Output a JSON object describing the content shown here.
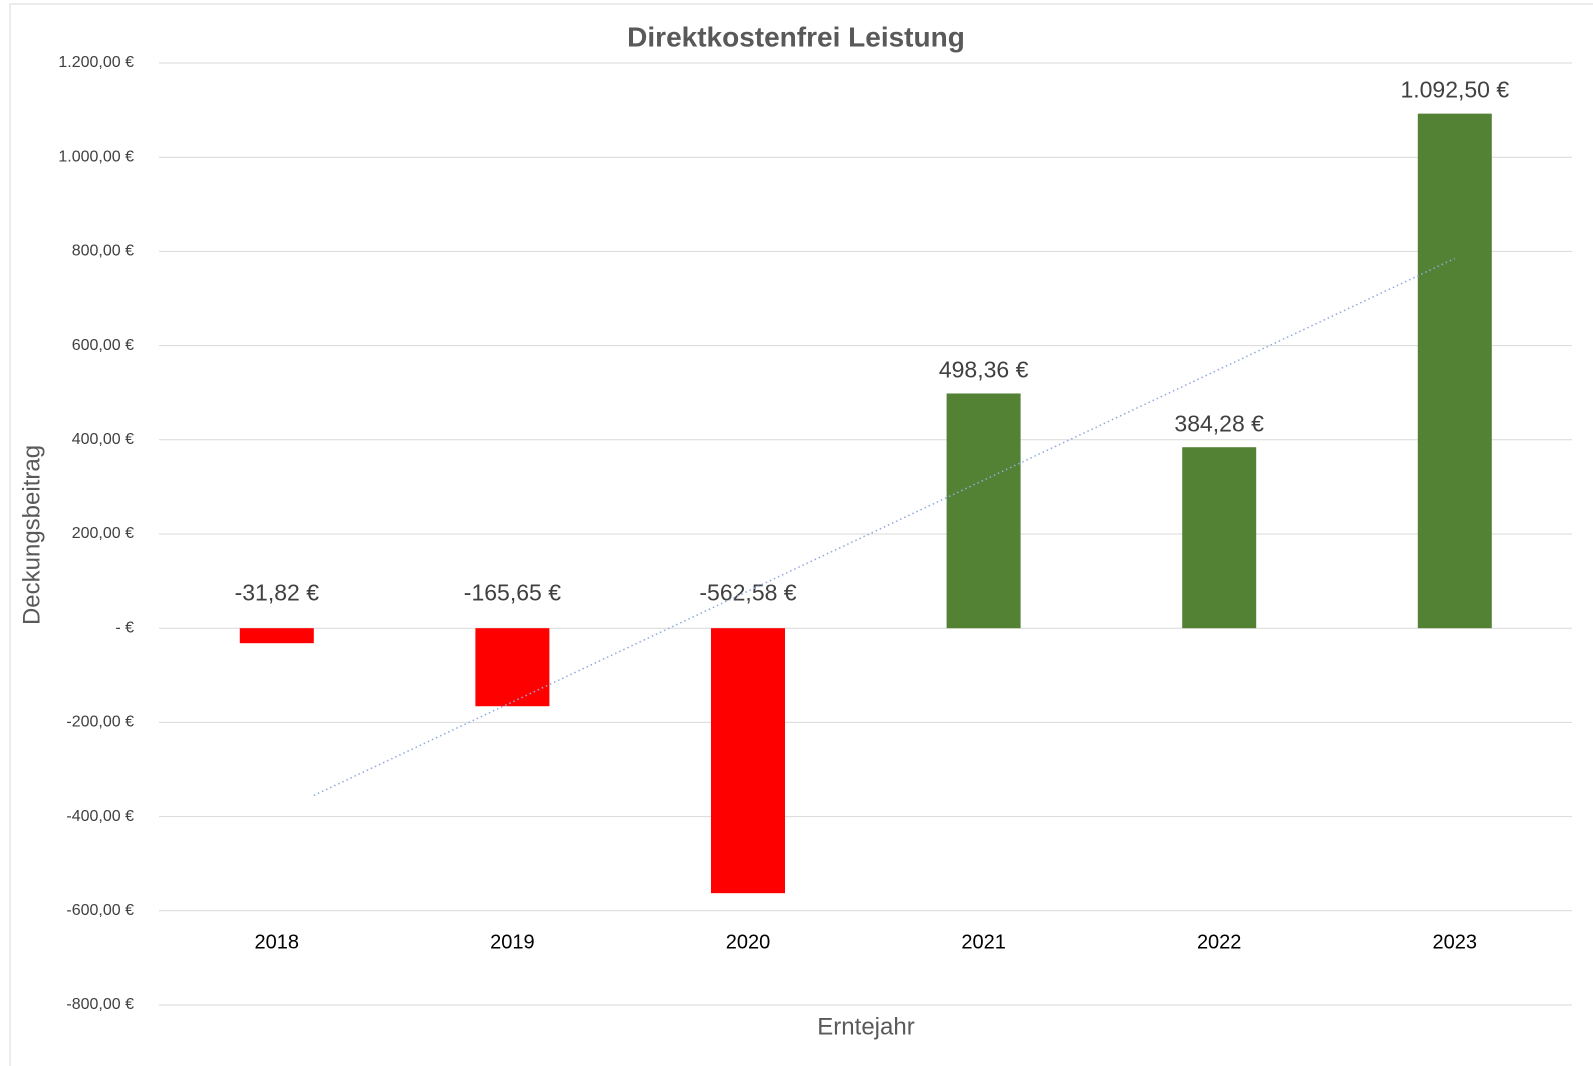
{
  "chart_data": {
    "type": "bar",
    "title": "Direktkostenfrei Leistung",
    "x_label": "Erntejahr",
    "y_label": "Deckungsbeitrag",
    "categories": [
      "2018",
      "2019",
      "2020",
      "2021",
      "2022",
      "2023"
    ],
    "values": [
      -31.82,
      -165.65,
      -562.58,
      498.36,
      384.28,
      1092.5
    ],
    "value_labels": [
      "-31,82 €",
      "-165,65 €",
      "-562,58 €",
      "498,36 €",
      "384,28 €",
      "1.092,50 €"
    ],
    "colors": [
      "#ff0000",
      "#ff0000",
      "#ff0000",
      "#548235",
      "#548235",
      "#548235"
    ],
    "trendline": {
      "values": [
        -355,
        785
      ],
      "color": "#8faadc"
    },
    "ylim": [
      -800,
      1200
    ],
    "yticks": [
      {
        "value": -800,
        "label": "-800,00 €"
      },
      {
        "value": -600,
        "label": "-600,00 €"
      },
      {
        "value": -400,
        "label": "-400,00 €"
      },
      {
        "value": -200,
        "label": "-200,00 €"
      },
      {
        "value": 0,
        "label": "-  €"
      },
      {
        "value": 200,
        "label": "200,00 €"
      },
      {
        "value": 400,
        "label": "400,00 €"
      },
      {
        "value": 600,
        "label": "600,00 €"
      },
      {
        "value": 800,
        "label": "800,00 €"
      },
      {
        "value": 1000,
        "label": "1.000,00 €"
      },
      {
        "value": 1200,
        "label": "1.200,00 €"
      }
    ],
    "grid": true
  }
}
